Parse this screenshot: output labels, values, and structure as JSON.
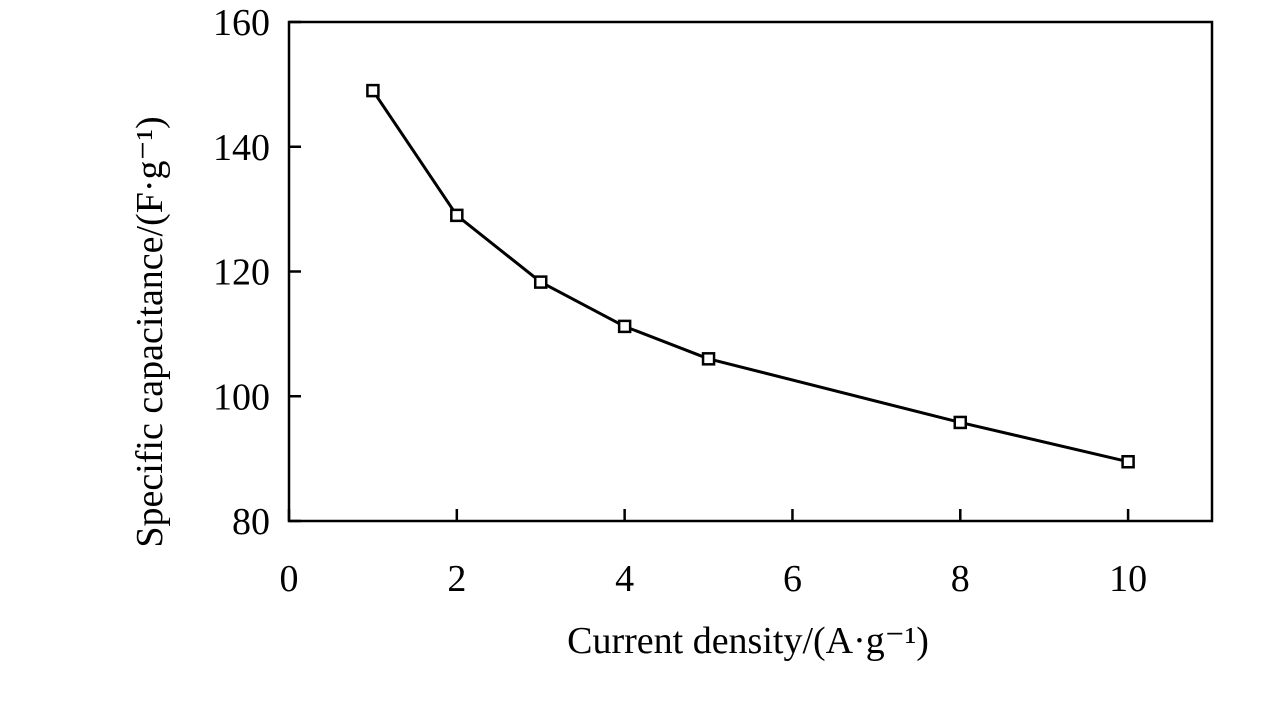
{
  "chart_data": {
    "type": "line",
    "xlabel": "Current density/(A·g⁻¹)",
    "ylabel": "Specific capacitance/(F·g⁻¹)",
    "xlim": [
      0,
      11
    ],
    "ylim": [
      80,
      160
    ],
    "x_ticks": [
      0,
      2,
      4,
      6,
      8,
      10
    ],
    "y_ticks": [
      80,
      100,
      120,
      140,
      160
    ],
    "x_tick_labels": [
      "0",
      "2",
      "4",
      "6",
      "8",
      "10"
    ],
    "y_tick_labels": [
      "80",
      "100",
      "120",
      "140",
      "160"
    ],
    "grid": false,
    "legend": "none",
    "marker": "open-square",
    "line_color": "#000000",
    "series": [
      {
        "x": [
          1,
          2,
          3,
          4,
          5,
          8,
          10
        ],
        "y": [
          149,
          129,
          118.3,
          111.2,
          106,
          95.8,
          89.5
        ]
      }
    ]
  }
}
